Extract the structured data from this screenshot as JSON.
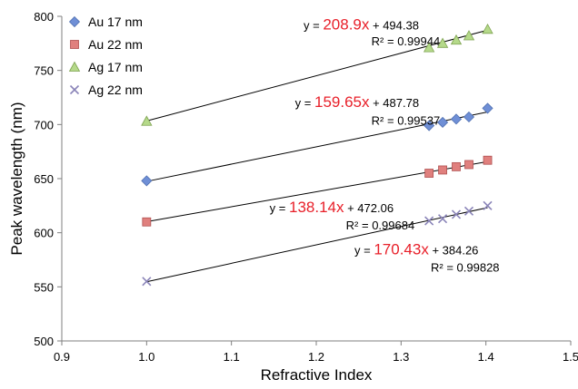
{
  "chart_data": {
    "type": "scatter",
    "xlabel": "Refractive Index",
    "ylabel": "Peak wavelength (nm)",
    "xlim": [
      0.9,
      1.5
    ],
    "ylim": [
      500,
      800
    ],
    "x_ticks": [
      "0.9",
      "1.0",
      "1.1",
      "1.2",
      "1.3",
      "1.4",
      "1.5"
    ],
    "y_ticks": [
      "500",
      "550",
      "600",
      "650",
      "700",
      "750",
      "800"
    ],
    "x_tick_values": [
      0.9,
      1.0,
      1.1,
      1.2,
      1.3,
      1.4,
      1.5
    ],
    "y_tick_values": [
      500,
      550,
      600,
      650,
      700,
      750,
      800
    ],
    "grid": "none",
    "legend_position": "top-left",
    "series": [
      {
        "name": "Au 17 nm",
        "marker": "diamond",
        "color": "#6f8fd6",
        "x": [
          1.0,
          1.333,
          1.349,
          1.365,
          1.38,
          1.402
        ],
        "y": [
          648,
          699,
          702,
          705,
          707,
          715
        ],
        "fit": {
          "slope": 159.65,
          "intercept": 487.78,
          "slope_label": "159.65x",
          "prefix": "y = ",
          "suffix": " + 487.78",
          "r2": "R² = 0.99537"
        }
      },
      {
        "name": "Au 22 nm",
        "marker": "square",
        "color": "#e0807e",
        "x": [
          1.0,
          1.333,
          1.349,
          1.365,
          1.38,
          1.402
        ],
        "y": [
          610,
          655,
          658,
          661,
          663,
          667
        ],
        "fit": {
          "slope": 138.14,
          "intercept": 472.06,
          "slope_label": "138.14x",
          "prefix": "y = ",
          "suffix": " + 472.06",
          "r2": "R² = 0.99684"
        }
      },
      {
        "name": "Ag 17 nm",
        "marker": "triangle",
        "color": "#b5d98a",
        "x": [
          1.0,
          1.333,
          1.349,
          1.365,
          1.38,
          1.402
        ],
        "y": [
          703,
          771,
          775,
          778,
          782,
          788
        ],
        "fit": {
          "slope": 208.9,
          "intercept": 494.38,
          "slope_label": "208.9x",
          "prefix": "y = ",
          "suffix": " + 494.38",
          "r2": "R² = 0.99944"
        }
      },
      {
        "name": "Ag 22 nm",
        "marker": "x",
        "color": "#8a84b8",
        "x": [
          1.0,
          1.333,
          1.349,
          1.365,
          1.38,
          1.402
        ],
        "y": [
          555,
          611,
          613,
          617,
          620,
          625
        ],
        "fit": {
          "slope": 170.43,
          "intercept": 384.26,
          "slope_label": "170.43x",
          "prefix": "y = ",
          "suffix": " + 384.26",
          "r2": "R² = 0.99828"
        }
      }
    ]
  }
}
